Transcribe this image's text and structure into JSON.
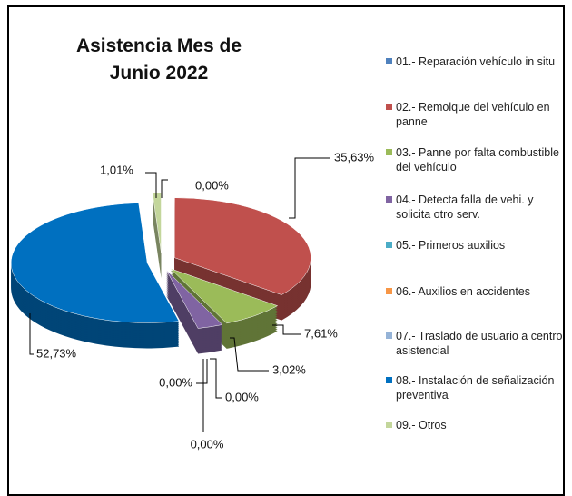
{
  "chart_data": {
    "type": "pie",
    "title": "Asistencia Mes de Junio 2022",
    "categories": [
      "01.- Reparación vehículo in situ",
      "02.- Remolque del vehículo en panne",
      "03.- Panne por falta combustible del vehículo",
      "04.- Detecta falla de vehi. y solicita otro serv.",
      "05.- Primeros auxilios",
      "06.- Auxilios en accidentes",
      "07.- Traslado de usuario a centro asistencial",
      "08.- Instalación de señalización preventiva",
      "09.- Otros"
    ],
    "values": [
      0.0,
      35.63,
      7.61,
      3.02,
      0.0,
      0.0,
      0.0,
      52.73,
      1.01
    ],
    "value_labels": [
      "0,00%",
      "35,63%",
      "7,61%",
      "3,02%",
      "0,00%",
      "0,00%",
      "0,00%",
      "52,73%",
      "1,01%"
    ],
    "colors": [
      "#4f81bd",
      "#c0504d",
      "#9bbb59",
      "#8064a2",
      "#4bacc6",
      "#f79646",
      "#95b3d7",
      "#0070c0",
      "#c3d69b"
    ],
    "legend": "right"
  }
}
